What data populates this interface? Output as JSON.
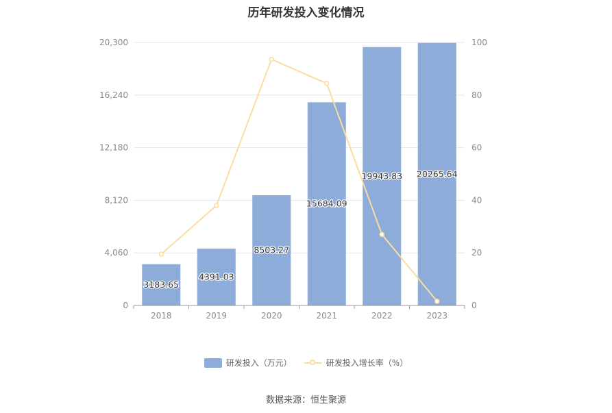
{
  "chart_data": {
    "type": "bar",
    "title": "历年研发投入变化情况",
    "categories": [
      "2018",
      "2019",
      "2020",
      "2021",
      "2022",
      "2023"
    ],
    "series": [
      {
        "name": "研发投入（万元）",
        "type": "bar",
        "axis": "left",
        "color": "#8eacd9",
        "values": [
          3183.65,
          4391.03,
          8503.27,
          15684.09,
          19943.83,
          20265.64
        ],
        "labels": [
          "3183.65",
          "4391.03",
          "8503.27",
          "15684.09",
          "19943.83",
          "20265.64"
        ]
      },
      {
        "name": "研发投入增长率（%）",
        "type": "line",
        "axis": "right",
        "color": "#fcdca0",
        "values": [
          19.5,
          38,
          93.6,
          84.4,
          27,
          1.6
        ]
      }
    ],
    "y_left": {
      "ylim": [
        0,
        20300
      ],
      "ticks": [
        "0",
        "4,060",
        "8,120",
        "12,180",
        "16,240",
        "20,300"
      ]
    },
    "y_right": {
      "ylim": [
        0,
        100
      ],
      "ticks": [
        "0",
        "20",
        "40",
        "60",
        "80",
        "100"
      ]
    },
    "grid": true,
    "legend_position": "bottom"
  },
  "source": "数据来源：恒生聚源"
}
